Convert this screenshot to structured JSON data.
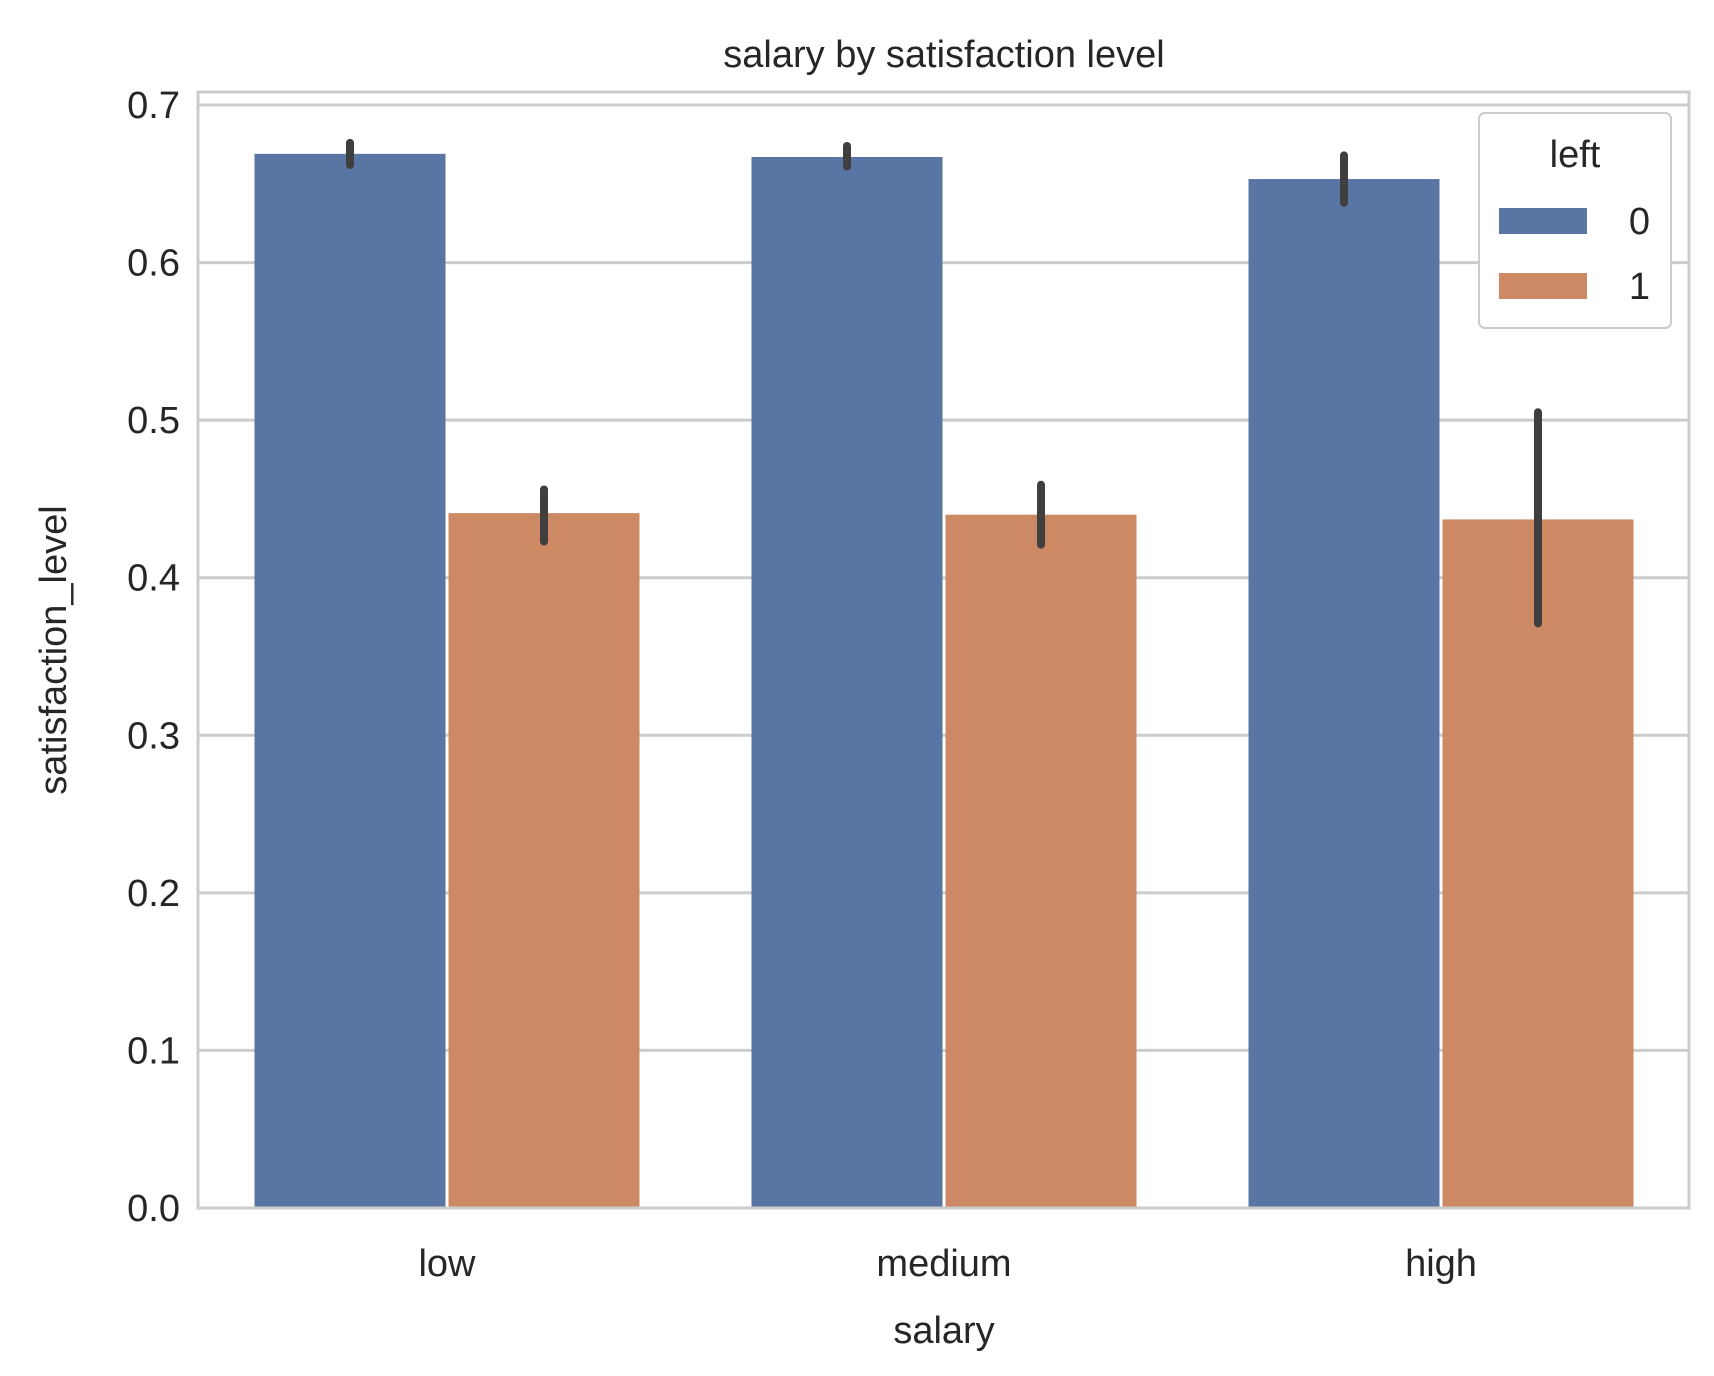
{
  "chart_data": {
    "type": "bar",
    "title": "salary by satisfaction level",
    "xlabel": "salary",
    "ylabel": "satisfaction_level",
    "categories": [
      "low",
      "medium",
      "high"
    ],
    "ylim": [
      0,
      0.7
    ],
    "yticks": [
      "0.0",
      "0.1",
      "0.2",
      "0.3",
      "0.4",
      "0.5",
      "0.6",
      "0.7"
    ],
    "grid": "horizontal",
    "legend": {
      "title": "left",
      "position": "top-right"
    },
    "series": [
      {
        "name": "0",
        "color": "#5975a4",
        "values": [
          0.669,
          0.667,
          0.653
        ],
        "ci_low": [
          0.662,
          0.661,
          0.638
        ],
        "ci_high": [
          0.676,
          0.674,
          0.668
        ]
      },
      {
        "name": "1",
        "color": "#cc8963",
        "values": [
          0.441,
          0.44,
          0.437
        ],
        "ci_low": [
          0.423,
          0.421,
          0.371
        ],
        "ci_high": [
          0.456,
          0.459,
          0.505
        ]
      }
    ],
    "errorbar_color": "#3f3f3f",
    "frame_color": "#cccccc",
    "grid_color": "#cccccc"
  }
}
